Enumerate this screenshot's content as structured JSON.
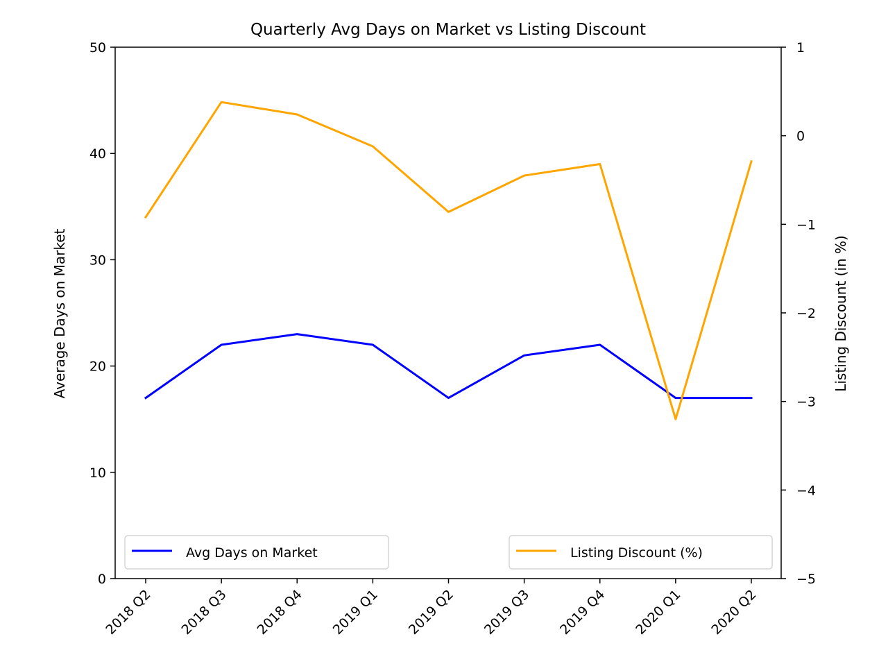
{
  "chart_data": {
    "type": "line",
    "title": "Quarterly Avg Days on Market vs Listing Discount",
    "categories": [
      "2018 Q2",
      "2018 Q3",
      "2018 Q4",
      "2019 Q1",
      "2019 Q2",
      "2019 Q3",
      "2019 Q4",
      "2020 Q1",
      "2020 Q2"
    ],
    "ylabel_left": "Average Days on Market",
    "ylabel_right": "Listing Discount (in %)",
    "ylim_left": [
      0,
      50
    ],
    "ylim_right": [
      -5,
      1
    ],
    "yticks_left": [
      "0",
      "10",
      "20",
      "30",
      "40",
      "50"
    ],
    "yticks_right": [
      "−5",
      "−4",
      "−3",
      "−2",
      "−1",
      "0",
      "1"
    ],
    "grid": false,
    "series": [
      {
        "name": "Avg Days on Market",
        "axis": "left",
        "color": "#0000ff",
        "values": [
          17,
          22,
          23,
          22,
          17,
          21,
          22,
          17,
          17
        ]
      },
      {
        "name": "Listing Discount (%)",
        "axis": "right",
        "color": "#ffa500",
        "values": [
          -0.92,
          0.38,
          0.24,
          -0.12,
          -0.86,
          -0.45,
          -0.32,
          -3.2,
          -0.29
        ]
      }
    ],
    "legend": [
      {
        "label": "Avg Days on Market",
        "placement": "lower-left"
      },
      {
        "label": "Listing Discount (%)",
        "placement": "lower-right"
      }
    ]
  }
}
